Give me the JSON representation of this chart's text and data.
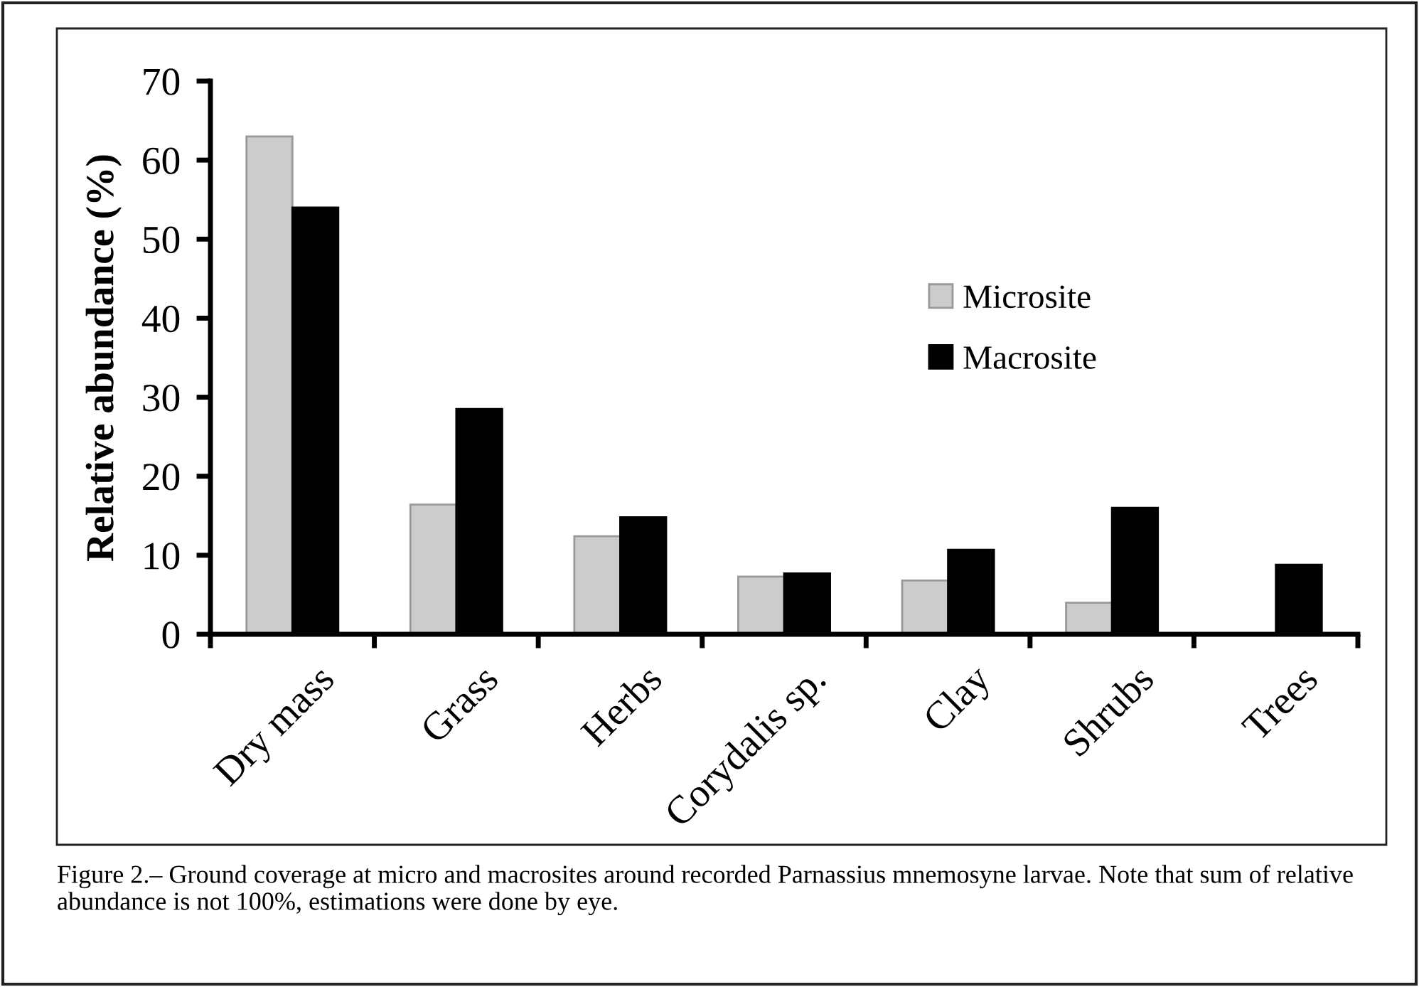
{
  "chart_data": {
    "type": "bar",
    "categories": [
      "Dry mass",
      "Grass",
      "Herbs",
      "Corydalis sp.",
      "Clay",
      "Shrubs",
      "Trees"
    ],
    "ylabel": "Relative abundance (%)",
    "series": [
      {
        "name": "Microsite",
        "color": "#cccccc",
        "values": [
          63,
          16.4,
          12.4,
          7.3,
          6.8,
          4.0,
          null
        ]
      },
      {
        "name": "Macrosite",
        "color": "#000000",
        "values": [
          54,
          28.5,
          14.8,
          7.7,
          10.7,
          16.0,
          8.8
        ]
      }
    ],
    "ylim": [
      0,
      70
    ],
    "yticks": [
      0,
      10,
      20,
      30,
      40,
      50,
      60,
      70
    ],
    "grid": false,
    "legend": "right",
    "annotations": [
      "Figure 2.– Ground coverage at micro and macrosites around recorded Parnassius mnemosyne larvae. Note that sum of relative abundance is not 100%, estimations were done by eye."
    ]
  }
}
